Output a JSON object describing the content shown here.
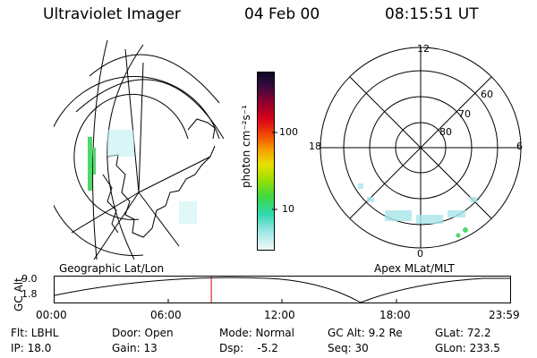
{
  "header": {
    "instrument": "Ultraviolet Imager",
    "date": "04 Feb 00",
    "time": "08:15:51 UT"
  },
  "colorbar": {
    "unit_label": "photon cm⁻²s⁻¹",
    "ticks": [
      "100",
      "10"
    ]
  },
  "polar": {
    "labels_top": "12",
    "labels_bottom": "0",
    "labels_left": "18",
    "labels_right": "6",
    "lat_labels": [
      "60",
      "70",
      "80"
    ]
  },
  "panel_titles": {
    "left": "Geographic Lat/Lon",
    "right": "Apex MLat/MLT"
  },
  "alt_plot": {
    "ylabel": "GC Alt",
    "yticks": [
      "9.0",
      "1.8"
    ],
    "xticks": [
      "00:00",
      "06:00",
      "12:00",
      "18:00",
      "23:59"
    ],
    "current_fraction": 0.344
  },
  "status": {
    "filter": "Flt: LBHL",
    "door": "Door: Open",
    "mode": "Mode: Normal",
    "gc_alt": "GC Alt: 9.2 Re",
    "glat": "GLat:  72.2",
    "ip": "IP: 18.0",
    "gain": "Gain: 13",
    "dsp": "Dsp:    -5.2",
    "seq": "Seq: 30",
    "glon": "GLon: 233.5"
  }
}
